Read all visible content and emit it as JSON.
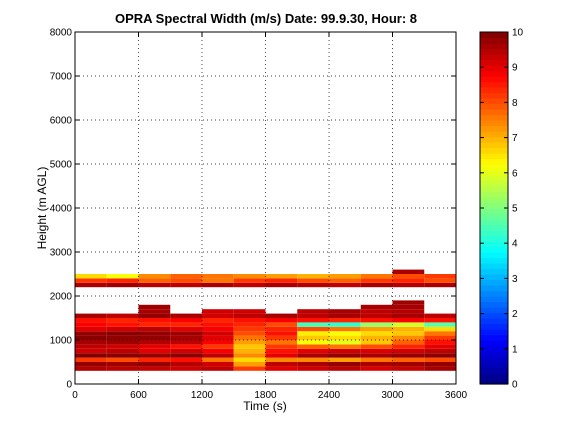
{
  "chart_data": {
    "type": "heatmap",
    "title": "OPRA Spectral Width (m/s)  Date: 99.9.30, Hour: 8",
    "xlabel": "Time (s)",
    "ylabel": "Height (m AGL)",
    "xlim": [
      0,
      3600
    ],
    "ylim": [
      0,
      8000
    ],
    "xticks": [
      "0",
      "600",
      "1200",
      "1800",
      "2400",
      "3000",
      "3600"
    ],
    "yticks": [
      "0",
      "1000",
      "2000",
      "3000",
      "4000",
      "5000",
      "6000",
      "7000",
      "8000"
    ],
    "grid": true,
    "colormap": "jet",
    "colorbar": {
      "range": [
        0,
        10
      ],
      "ticks": [
        "0",
        "1",
        "2",
        "3",
        "4",
        "5",
        "6",
        "7",
        "8",
        "9",
        "10"
      ]
    },
    "height_bins_m": [
      200,
      300,
      400,
      500,
      600,
      700,
      800,
      900,
      1000,
      1100,
      1200,
      1300,
      1400,
      1500,
      1600,
      1700,
      1800,
      1900,
      2000,
      2100,
      2200,
      2300,
      2400,
      2500,
      2600,
      2700,
      2800,
      2900,
      3000
    ],
    "time_bins_s": [
      0,
      300,
      600,
      900,
      1200,
      1500,
      1800,
      2100,
      2400,
      2700,
      3000,
      3300,
      3600
    ],
    "values": [
      [
        null,
        null,
        null,
        null,
        null,
        null,
        null,
        null,
        null,
        null,
        null,
        null
      ],
      [
        9.5,
        9.4,
        9.3,
        9.2,
        9.4,
        8.2,
        9.0,
        9.2,
        9.4,
        9.1,
        9.3,
        9.6
      ],
      [
        9.8,
        9.7,
        9.8,
        9.5,
        9.2,
        7.2,
        9.4,
        9.6,
        9.8,
        9.6,
        9.7,
        9.8
      ],
      [
        8.2,
        8.0,
        8.4,
        8.6,
        7.6,
        6.6,
        7.4,
        7.4,
        7.2,
        7.6,
        7.8,
        8.0
      ],
      [
        10.0,
        9.9,
        9.8,
        9.9,
        9.4,
        7.4,
        9.0,
        9.6,
        9.8,
        9.6,
        9.8,
        9.9
      ],
      [
        9.2,
        9.4,
        9.0,
        9.2,
        8.8,
        7.0,
        8.6,
        9.0,
        9.2,
        9.1,
        9.2,
        9.4
      ],
      [
        9.4,
        9.2,
        9.0,
        8.6,
        8.2,
        6.8,
        8.2,
        7.8,
        7.6,
        8.0,
        8.4,
        9.0
      ],
      [
        9.6,
        9.7,
        9.5,
        9.4,
        8.8,
        7.2,
        7.6,
        6.2,
        6.0,
        6.8,
        7.8,
        8.6
      ],
      [
        9.9,
        9.8,
        9.8,
        9.6,
        9.0,
        7.6,
        8.2,
        6.8,
        6.6,
        7.0,
        7.4,
        8.2
      ],
      [
        9.8,
        9.9,
        9.8,
        9.7,
        9.2,
        8.0,
        8.6,
        6.4,
        6.2,
        6.6,
        6.8,
        7.6
      ],
      [
        9.0,
        9.2,
        9.4,
        9.0,
        8.8,
        8.2,
        8.4,
        8.0,
        7.6,
        7.2,
        7.0,
        6.6
      ],
      [
        8.8,
        8.6,
        8.4,
        8.4,
        8.6,
        8.4,
        8.0,
        4.4,
        4.2,
        5.2,
        5.8,
        4.6
      ],
      [
        8.6,
        8.4,
        8.6,
        8.8,
        8.4,
        8.6,
        8.8,
        8.6,
        8.4,
        8.6,
        8.8,
        8.6
      ],
      [
        9.6,
        9.4,
        9.8,
        9.6,
        9.2,
        9.4,
        9.6,
        9.4,
        9.6,
        9.4,
        9.6,
        9.4
      ],
      [
        null,
        null,
        9.6,
        null,
        9.2,
        9.2,
        null,
        9.4,
        9.6,
        9.4,
        9.5,
        null
      ],
      [
        null,
        null,
        9.7,
        null,
        null,
        null,
        null,
        null,
        null,
        9.6,
        9.6,
        null
      ],
      [
        null,
        null,
        null,
        null,
        null,
        null,
        null,
        null,
        null,
        null,
        9.7,
        null
      ],
      [
        null,
        null,
        null,
        null,
        null,
        null,
        null,
        null,
        null,
        null,
        null,
        null
      ],
      [
        null,
        null,
        null,
        null,
        null,
        null,
        null,
        null,
        null,
        null,
        null,
        null
      ],
      [
        null,
        null,
        null,
        null,
        null,
        null,
        null,
        null,
        null,
        null,
        null,
        null
      ],
      [
        9.6,
        9.7,
        9.5,
        9.4,
        9.6,
        9.4,
        9.6,
        9.5,
        9.4,
        9.6,
        9.5,
        9.6
      ],
      [
        8.2,
        8.4,
        7.8,
        8.0,
        7.6,
        8.2,
        8.4,
        8.0,
        7.8,
        8.2,
        8.4,
        8.0
      ],
      [
        6.6,
        6.2,
        7.4,
        7.8,
        7.6,
        7.4,
        7.2,
        7.0,
        7.2,
        7.6,
        8.0,
        8.2
      ],
      [
        null,
        null,
        null,
        null,
        null,
        null,
        null,
        null,
        null,
        null,
        9.6,
        null
      ],
      [
        null,
        null,
        null,
        null,
        null,
        null,
        null,
        null,
        null,
        null,
        null,
        null
      ],
      [
        null,
        null,
        null,
        null,
        null,
        null,
        null,
        null,
        null,
        null,
        null,
        null
      ],
      [
        null,
        null,
        null,
        null,
        null,
        null,
        null,
        null,
        null,
        null,
        null,
        null
      ],
      [
        null,
        null,
        null,
        null,
        null,
        null,
        null,
        null,
        null,
        null,
        null,
        null
      ]
    ]
  }
}
